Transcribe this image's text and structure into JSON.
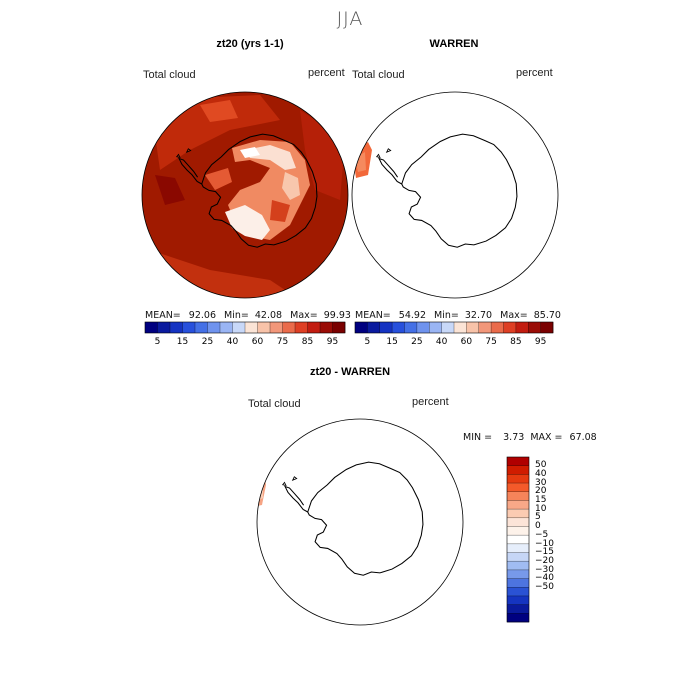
{
  "season": "JJA",
  "panels": [
    {
      "title": "zt20 (yrs 1-1)",
      "variable": "Total cloud",
      "units": "percent",
      "stats": {
        "mean_label": "MEAN=",
        "mean": "92.06",
        "min_label": "Min=",
        "min": "42.08",
        "max_label": "Max=",
        "max": "99.93"
      }
    },
    {
      "title": "WARREN",
      "variable": "Total cloud",
      "units": "percent",
      "stats": {
        "mean_label": "MEAN=",
        "mean": "54.92",
        "min_label": "Min=",
        "min": "32.70",
        "max_label": "Max=",
        "max": "85.70"
      }
    },
    {
      "title": "zt20 - WARREN",
      "variable": "Total cloud",
      "units": "percent",
      "stats": {
        "min_label": "MIN =",
        "min": "3.73",
        "max_label": "MAX =",
        "max": "67.08"
      }
    }
  ],
  "colorbar_abs": {
    "colors": [
      "#000080",
      "#0a1a9e",
      "#1533c2",
      "#2750dc",
      "#4470e6",
      "#6f93ee",
      "#9ab5f4",
      "#c8d8f8",
      "#fbe4d6",
      "#f8c3a9",
      "#f2977a",
      "#ea6b4b",
      "#de3f24",
      "#c21c10",
      "#9a0c06",
      "#7a0000"
    ],
    "labels": [
      "5",
      "15",
      "25",
      "40",
      "60",
      "75",
      "85",
      "95"
    ]
  },
  "colorbar_diff": {
    "colors": [
      "#b00000",
      "#d01c00",
      "#e53a10",
      "#f45a2a",
      "#f6845a",
      "#f8a888",
      "#fbcbb2",
      "#fce4d8",
      "#fdf2ea",
      "#ffffff",
      "#e6eefb",
      "#c6d6f6",
      "#a0bcf2",
      "#7799ea",
      "#4d74e0",
      "#2a52d4",
      "#1534c0",
      "#0a1a9c",
      "#000080"
    ],
    "labels": [
      "50",
      "40",
      "30",
      "20",
      "15",
      "10",
      "5",
      "0",
      "-5",
      "-10",
      "-15",
      "-20",
      "-30",
      "-40",
      "-50"
    ]
  }
}
